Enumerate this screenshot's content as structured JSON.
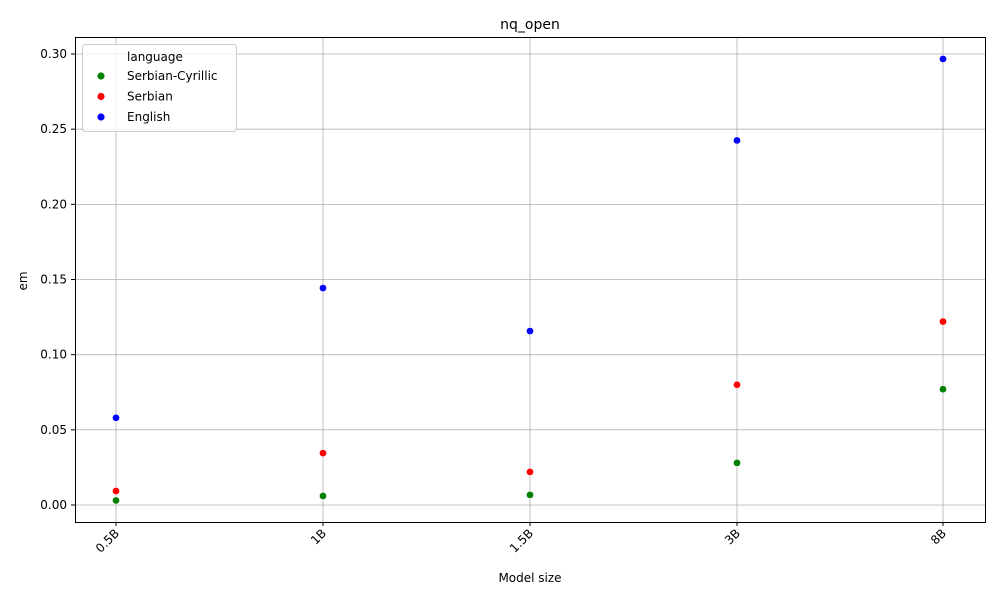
{
  "chart_data": {
    "type": "scatter",
    "title": "nq_open",
    "xlabel": "Model size",
    "ylabel": "em",
    "categories": [
      "0.5B",
      "1B",
      "1.5B",
      "3B",
      "8B"
    ],
    "ylim": [
      -0.011,
      0.311
    ],
    "yticks": [
      0.0,
      0.05,
      0.1,
      0.15,
      0.2,
      0.25,
      0.3
    ],
    "ytick_labels": [
      "0.00",
      "0.05",
      "0.10",
      "0.15",
      "0.20",
      "0.25",
      "0.30"
    ],
    "grid": true,
    "legend": {
      "title": "language",
      "placement": "top-left"
    },
    "series": [
      {
        "name": "Serbian-Cyrillic",
        "color": "#008000",
        "values": [
          0.003,
          0.006,
          0.0067,
          0.028,
          0.077
        ]
      },
      {
        "name": "Serbian",
        "color": "#ff0000",
        "values": [
          0.0093,
          0.0345,
          0.022,
          0.08,
          0.122
        ]
      },
      {
        "name": "English",
        "color": "#0000ff",
        "values": [
          0.058,
          0.1443,
          0.1157,
          0.2425,
          0.2967
        ]
      }
    ]
  }
}
